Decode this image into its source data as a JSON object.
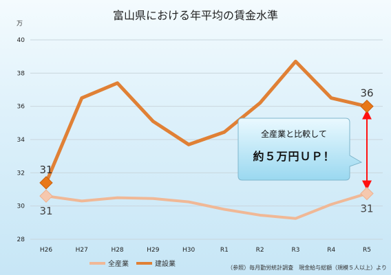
{
  "title": "富山県における年平均の賃金水準",
  "unit_label": "万",
  "source_note": "（参照）毎月勤労統計調査　現金給与総額（規模５人以上）より",
  "callout": {
    "line1": "全産業と比較して",
    "line2": "約５万円ＵＰ！"
  },
  "colors": {
    "all": "#f0b896",
    "construction": "#e08035",
    "arrow": "#ff1010",
    "background": "#d6edf8"
  },
  "chart_data": {
    "type": "line",
    "categories": [
      "H26",
      "H27",
      "H28",
      "H29",
      "H30",
      "R1",
      "R2",
      "R3",
      "R4",
      "R5"
    ],
    "ylim": [
      28,
      40
    ],
    "yticks": [
      28,
      30,
      32,
      34,
      36,
      38,
      40
    ],
    "grid": true,
    "legend_position": "bottom",
    "series": [
      {
        "name": "全産業",
        "color": "#f0b896",
        "values": [
          30.6,
          30.3,
          30.5,
          30.45,
          30.25,
          29.8,
          29.45,
          29.25,
          30.1,
          30.75
        ]
      },
      {
        "name": "建設業",
        "color": "#e08035",
        "values": [
          31.4,
          36.5,
          37.4,
          35.1,
          33.7,
          34.45,
          36.2,
          38.7,
          36.5,
          36.0
        ]
      }
    ],
    "data_labels": [
      {
        "series": 1,
        "index": 0,
        "text": "31",
        "pos": "above"
      },
      {
        "series": 0,
        "index": 0,
        "text": "31",
        "pos": "below"
      },
      {
        "series": 1,
        "index": 9,
        "text": "36",
        "pos": "above"
      },
      {
        "series": 0,
        "index": 9,
        "text": "31",
        "pos": "below"
      }
    ]
  }
}
